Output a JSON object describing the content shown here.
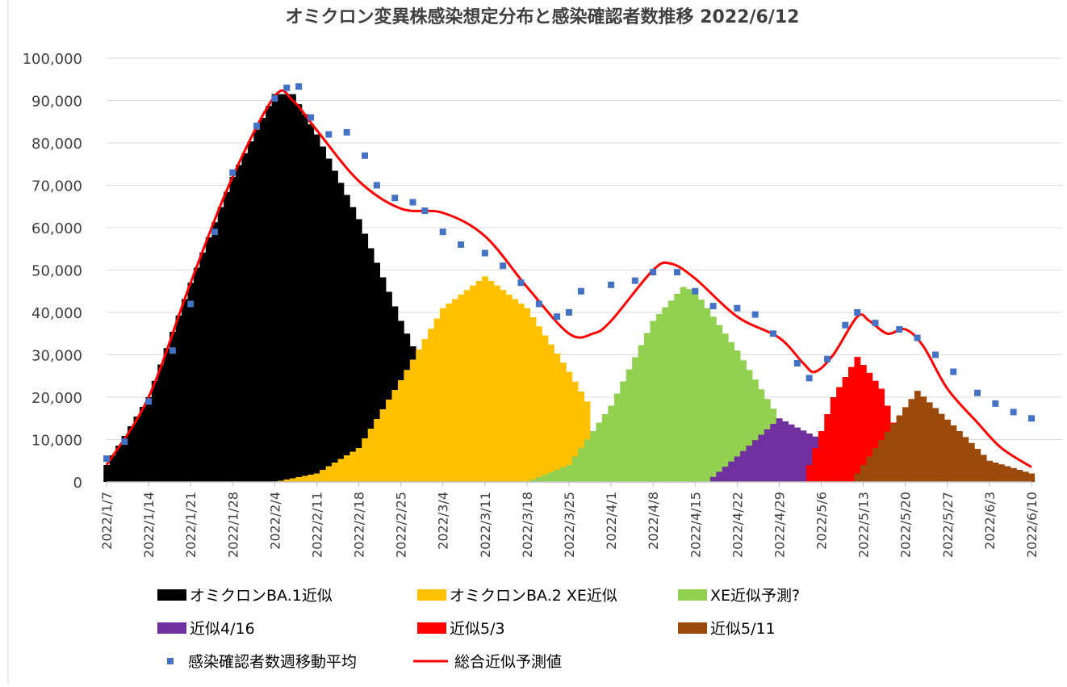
{
  "chart_data": {
    "type": "bar",
    "title": "オミクロン変異株感染想定分布と感染確認者数推移 2022/6/12",
    "xlabel": "",
    "ylabel": "",
    "ylim": [
      0,
      100000
    ],
    "grid": true,
    "legend_position": "bottom",
    "x_start": "2022/1/7",
    "x_end": "2022/6/10",
    "y_ticks": [
      "0",
      "10,000",
      "20,000",
      "30,000",
      "40,000",
      "50,000",
      "60,000",
      "70,000",
      "80,000",
      "90,000",
      "100,000"
    ],
    "x_ticks": [
      "2022/1/7",
      "2022/1/14",
      "2022/1/21",
      "2022/1/28",
      "2022/2/4",
      "2022/2/11",
      "2022/2/18",
      "2022/2/25",
      "2022/3/4",
      "2022/3/11",
      "2022/3/18",
      "2022/3/25",
      "2022/4/1",
      "2022/4/8",
      "2022/4/15",
      "2022/4/22",
      "2022/4/29",
      "2022/5/6",
      "2022/5/13",
      "2022/5/20",
      "2022/5/27",
      "2022/6/3",
      "2022/6/10"
    ],
    "series": [
      {
        "name": "オミクロンBA.1近似",
        "type": "bar",
        "color": "#000000",
        "points": [
          [
            "2022/1/7",
            4000
          ],
          [
            "2022/1/14",
            20000
          ],
          [
            "2022/1/21",
            47000
          ],
          [
            "2022/1/28",
            72000
          ],
          [
            "2022/2/4",
            91500
          ],
          [
            "2022/2/7",
            91500
          ],
          [
            "2022/2/11",
            82000
          ],
          [
            "2022/2/18",
            62000
          ],
          [
            "2022/2/25",
            38000
          ],
          [
            "2022/2/27",
            32000
          ]
        ]
      },
      {
        "name": "オミクロンBA.2 XE近似",
        "type": "bar",
        "color": "#FFC000",
        "points": [
          [
            "2022/2/4",
            0
          ],
          [
            "2022/2/11",
            2000
          ],
          [
            "2022/2/18",
            8000
          ],
          [
            "2022/2/25",
            24000
          ],
          [
            "2022/3/4",
            41000
          ],
          [
            "2022/3/11",
            48500
          ],
          [
            "2022/3/18",
            41000
          ],
          [
            "2022/3/25",
            26000
          ],
          [
            "2022/3/28",
            19000
          ]
        ]
      },
      {
        "name": "XE近似予測?",
        "type": "bar",
        "color": "#92D050",
        "points": [
          [
            "2022/3/18",
            0
          ],
          [
            "2022/3/25",
            4000
          ],
          [
            "2022/4/1",
            18000
          ],
          [
            "2022/4/8",
            38000
          ],
          [
            "2022/4/13",
            46000
          ],
          [
            "2022/4/15",
            45000
          ],
          [
            "2022/4/22",
            31000
          ],
          [
            "2022/4/29",
            15000
          ],
          [
            "2022/5/2",
            10000
          ]
        ]
      },
      {
        "name": "近似4/16",
        "type": "bar",
        "color": "#7030A0",
        "points": [
          [
            "2022/4/17",
            0
          ],
          [
            "2022/4/22",
            6000
          ],
          [
            "2022/4/29",
            15000
          ],
          [
            "2022/5/6",
            10000
          ]
        ]
      },
      {
        "name": "近似5/3",
        "type": "bar",
        "color": "#FF0000",
        "points": [
          [
            "2022/5/3",
            0
          ],
          [
            "2022/5/8",
            20000
          ],
          [
            "2022/5/12",
            29500
          ],
          [
            "2022/5/16",
            22000
          ],
          [
            "2022/5/19",
            10000
          ]
        ]
      },
      {
        "name": "近似5/11",
        "type": "bar",
        "color": "#9C4A0C",
        "points": [
          [
            "2022/5/11",
            0
          ],
          [
            "2022/5/15",
            8000
          ],
          [
            "2022/5/22",
            21500
          ],
          [
            "2022/5/29",
            12000
          ],
          [
            "2022/6/3",
            5000
          ],
          [
            "2022/6/10",
            2000
          ]
        ]
      },
      {
        "name": "感染確認者数週移動平均",
        "type": "scatter",
        "color": "#4472C4",
        "points": [
          [
            "2022/1/7",
            5500
          ],
          [
            "2022/1/10",
            9500
          ],
          [
            "2022/1/14",
            19000
          ],
          [
            "2022/1/18",
            31000
          ],
          [
            "2022/1/21",
            42000
          ],
          [
            "2022/1/25",
            59000
          ],
          [
            "2022/1/28",
            73000
          ],
          [
            "2022/2/1",
            84000
          ],
          [
            "2022/2/4",
            90500
          ],
          [
            "2022/2/6",
            93000
          ],
          [
            "2022/2/8",
            93300
          ],
          [
            "2022/2/10",
            86000
          ],
          [
            "2022/2/13",
            82000
          ],
          [
            "2022/2/16",
            82500
          ],
          [
            "2022/2/19",
            77000
          ],
          [
            "2022/2/21",
            70000
          ],
          [
            "2022/2/24",
            67000
          ],
          [
            "2022/2/27",
            66000
          ],
          [
            "2022/3/1",
            64000
          ],
          [
            "2022/3/4",
            59000
          ],
          [
            "2022/3/7",
            56000
          ],
          [
            "2022/3/11",
            54000
          ],
          [
            "2022/3/14",
            51000
          ],
          [
            "2022/3/17",
            47000
          ],
          [
            "2022/3/20",
            42000
          ],
          [
            "2022/3/23",
            39000
          ],
          [
            "2022/3/25",
            40000
          ],
          [
            "2022/3/27",
            45000
          ],
          [
            "2022/4/1",
            46500
          ],
          [
            "2022/4/5",
            47500
          ],
          [
            "2022/4/8",
            49500
          ],
          [
            "2022/4/12",
            49500
          ],
          [
            "2022/4/15",
            45000
          ],
          [
            "2022/4/18",
            41500
          ],
          [
            "2022/4/22",
            41000
          ],
          [
            "2022/4/25",
            39500
          ],
          [
            "2022/4/28",
            35000
          ],
          [
            "2022/5/2",
            28000
          ],
          [
            "2022/5/4",
            24500
          ],
          [
            "2022/5/7",
            29000
          ],
          [
            "2022/5/10",
            37000
          ],
          [
            "2022/5/12",
            40000
          ],
          [
            "2022/5/15",
            37500
          ],
          [
            "2022/5/19",
            36000
          ],
          [
            "2022/5/22",
            34000
          ],
          [
            "2022/5/25",
            30000
          ],
          [
            "2022/5/28",
            26000
          ],
          [
            "2022/6/1",
            21000
          ],
          [
            "2022/6/4",
            18500
          ],
          [
            "2022/6/7",
            16500
          ],
          [
            "2022/6/10",
            15000
          ]
        ]
      },
      {
        "name": "総合近似予測値",
        "type": "line",
        "color": "#FF0000",
        "points": [
          [
            "2022/1/7",
            4000
          ],
          [
            "2022/1/14",
            20000
          ],
          [
            "2022/1/21",
            47000
          ],
          [
            "2022/1/28",
            72000
          ],
          [
            "2022/2/4",
            91000
          ],
          [
            "2022/2/7",
            90000
          ],
          [
            "2022/2/11",
            83000
          ],
          [
            "2022/2/18",
            71000
          ],
          [
            "2022/2/25",
            64500
          ],
          [
            "2022/3/4",
            63500
          ],
          [
            "2022/3/11",
            58000
          ],
          [
            "2022/3/18",
            46000
          ],
          [
            "2022/3/25",
            35000
          ],
          [
            "2022/3/29",
            35000
          ],
          [
            "2022/4/1",
            38000
          ],
          [
            "2022/4/8",
            50000
          ],
          [
            "2022/4/11",
            51500
          ],
          [
            "2022/4/15",
            48000
          ],
          [
            "2022/4/22",
            39000
          ],
          [
            "2022/4/29",
            34000
          ],
          [
            "2022/5/3",
            28000
          ],
          [
            "2022/5/5",
            26000
          ],
          [
            "2022/5/8",
            30000
          ],
          [
            "2022/5/12",
            39000
          ],
          [
            "2022/5/14",
            38000
          ],
          [
            "2022/5/17",
            35000
          ],
          [
            "2022/5/20",
            36000
          ],
          [
            "2022/5/23",
            32000
          ],
          [
            "2022/5/27",
            22000
          ],
          [
            "2022/6/1",
            14000
          ],
          [
            "2022/6/5",
            8000
          ],
          [
            "2022/6/10",
            3500
          ]
        ]
      }
    ]
  }
}
